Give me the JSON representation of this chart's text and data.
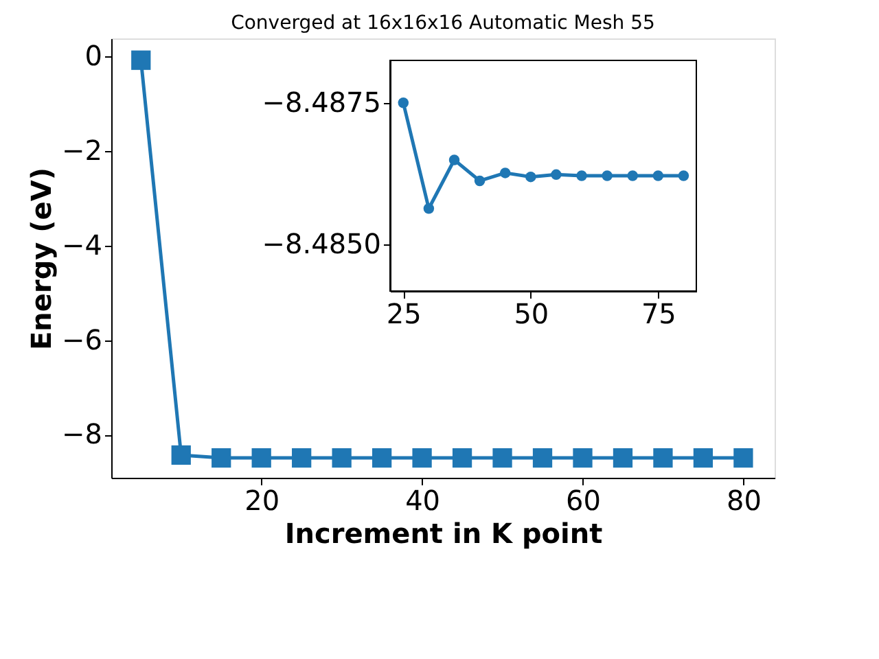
{
  "chart_data": [
    {
      "type": "line",
      "title": "Converged at 16x16x16 Automatic Mesh 55",
      "xlabel": "Increment in K point",
      "ylabel": "Energy (eV)",
      "x": [
        5,
        10,
        15,
        20,
        25,
        30,
        35,
        40,
        45,
        50,
        55,
        60,
        65,
        70,
        75,
        80
      ],
      "series": [
        {
          "color": "#1f77b4",
          "values": [
            -0.08,
            -8.43,
            -8.49,
            -8.49,
            -8.49,
            -8.49,
            -8.49,
            -8.49,
            -8.49,
            -8.49,
            -8.49,
            -8.49,
            -8.49,
            -8.49,
            -8.49,
            -8.49
          ]
        }
      ],
      "xlim": [
        1.3,
        83.9
      ],
      "ylim": [
        -8.91,
        0.38
      ],
      "xticks": [
        20,
        40,
        60,
        80
      ],
      "yticks": [
        0,
        -2,
        -4,
        -6,
        -8
      ],
      "marker": "square",
      "grid": false
    },
    {
      "type": "line",
      "x": [
        25,
        30,
        35,
        40,
        45,
        50,
        55,
        60,
        65,
        70,
        75,
        80
      ],
      "series": [
        {
          "color": "#1f77b4",
          "values": [
            -8.4875,
            -8.48563,
            -8.48649,
            -8.48612,
            -8.48626,
            -8.48619,
            -8.48623,
            -8.48621,
            -8.48621,
            -8.48621,
            -8.48621,
            -8.48621
          ]
        }
      ],
      "xlim": [
        22.4,
        82.5
      ],
      "ylim": [
        -8.48417,
        -8.48825
      ],
      "xticks": [
        25,
        50,
        75
      ],
      "yticks": [
        {
          "value": -8.4875,
          "label": "−8.4875"
        },
        {
          "value": -8.485,
          "label": "−8.4850"
        }
      ],
      "marker": "circle",
      "grid": false
    }
  ]
}
